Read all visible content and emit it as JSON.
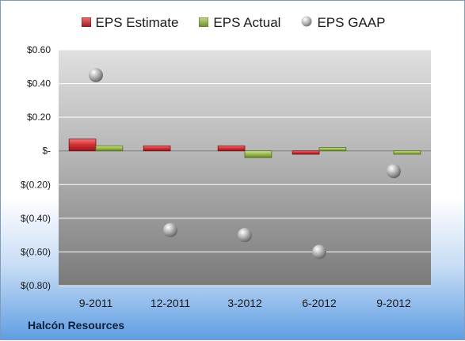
{
  "company": "Halcón Resources",
  "colors": {
    "estimate": "#c0272d",
    "actual": "#86a940",
    "gaap": "#9a9a9a"
  },
  "legend": [
    {
      "key": "estimate",
      "label": "EPS Estimate",
      "icon": "red-bar-swatch"
    },
    {
      "key": "actual",
      "label": "EPS Actual",
      "icon": "green-bar-swatch"
    },
    {
      "key": "gaap",
      "label": "EPS GAAP",
      "icon": "gray-sphere-swatch"
    }
  ],
  "chart_data": {
    "type": "bar",
    "title": "",
    "xlabel": "",
    "ylabel": "",
    "categories": [
      "9-2011",
      "12-2011",
      "3-2012",
      "6-2012",
      "9-2012"
    ],
    "series": [
      {
        "name": "EPS Estimate",
        "type": "bar",
        "values": [
          0.07,
          0.03,
          0.03,
          -0.02,
          null
        ]
      },
      {
        "name": "EPS Actual",
        "type": "bar",
        "values": [
          0.03,
          null,
          -0.04,
          0.02,
          -0.02
        ]
      },
      {
        "name": "EPS GAAP",
        "type": "scatter",
        "values": [
          0.45,
          -0.47,
          -0.5,
          -0.6,
          -0.12
        ]
      }
    ],
    "ylim": [
      -0.8,
      0.6
    ],
    "yticks": [
      0.6,
      0.4,
      0.2,
      0,
      -0.2,
      -0.4,
      -0.6,
      -0.8
    ],
    "ytick_labels": [
      "$0.60",
      "$0.40",
      "$0.20",
      "$-",
      "$(0.20)",
      "$(0.40)",
      "$(0.60)",
      "$(0.80)"
    ],
    "grid": true,
    "legend_position": "top"
  }
}
